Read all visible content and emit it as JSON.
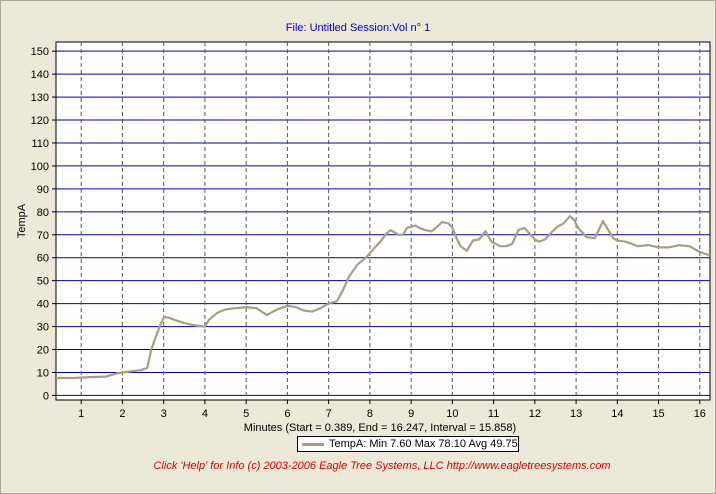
{
  "header": {
    "title": "File: Untitled   Session:Vol n° 1"
  },
  "footer": {
    "text": "Click 'Help' for Info  (c) 2003-2006 Eagle Tree Systems, LLC     http://www.eagletreesystems.com"
  },
  "legend": {
    "text": "TempA:  Min 7.60   Max 78.10   Avg 49.75"
  },
  "colors": {
    "series": "#a89f82",
    "grid_h": "#0000aa",
    "grid_v": "#555555",
    "title": "#0000cc",
    "footer": "#dd0000"
  },
  "chart_data": {
    "type": "line",
    "title": "File: Untitled   Session:Vol n° 1",
    "xlabel": "Minutes (Start = 0.389,  End = 16.247,  Interval =  15.858)",
    "ylabel": "TempA",
    "xlim": [
      0.389,
      16.247
    ],
    "ylim": [
      -2,
      154
    ],
    "xticks": [
      1,
      2,
      3,
      4,
      5,
      6,
      7,
      8,
      9,
      10,
      11,
      12,
      13,
      14,
      15,
      16
    ],
    "yticks": [
      0,
      10,
      20,
      30,
      40,
      50,
      60,
      70,
      80,
      90,
      100,
      110,
      120,
      130,
      140,
      150
    ],
    "grid": true,
    "legend_position": "bottom",
    "series": [
      {
        "name": "TempA",
        "x": [
          0.39,
          0.8,
          1.2,
          1.6,
          1.85,
          2.0,
          2.2,
          2.45,
          2.6,
          2.7,
          2.8,
          2.9,
          3.0,
          3.1,
          3.25,
          3.5,
          3.75,
          4.0,
          4.1,
          4.3,
          4.5,
          4.75,
          5.0,
          5.25,
          5.5,
          5.75,
          6.0,
          6.2,
          6.4,
          6.6,
          6.8,
          7.0,
          7.2,
          7.35,
          7.5,
          7.7,
          7.9,
          8.1,
          8.25,
          8.4,
          8.5,
          8.6,
          8.7,
          8.8,
          8.9,
          9.0,
          9.1,
          9.2,
          9.35,
          9.5,
          9.6,
          9.75,
          9.9,
          10.0,
          10.1,
          10.2,
          10.35,
          10.5,
          10.65,
          10.8,
          10.95,
          11.05,
          11.15,
          11.3,
          11.45,
          11.6,
          11.75,
          11.9,
          12.0,
          12.1,
          12.25,
          12.4,
          12.55,
          12.7,
          12.85,
          12.95,
          13.05,
          13.25,
          13.45,
          13.55,
          13.65,
          13.75,
          13.9,
          14.0,
          14.2,
          14.5,
          14.75,
          15.0,
          15.25,
          15.5,
          15.75,
          16.0,
          16.247
        ],
        "values": [
          7.6,
          7.6,
          8.0,
          8.2,
          9.5,
          10.0,
          10.5,
          11.0,
          12.0,
          20.0,
          25.0,
          30.0,
          34.0,
          34.0,
          33.0,
          31.5,
          30.5,
          30.0,
          33.0,
          36.0,
          37.5,
          38.0,
          38.5,
          38.0,
          35.0,
          37.5,
          39.0,
          38.5,
          37.0,
          36.5,
          38.0,
          40.0,
          41.0,
          46.0,
          52.0,
          57.0,
          60.0,
          64.0,
          67.0,
          70.5,
          72.0,
          71.0,
          70.0,
          70.0,
          73.0,
          73.5,
          74.0,
          73.0,
          72.0,
          71.5,
          73.0,
          75.5,
          75.0,
          73.0,
          68.5,
          65.0,
          63.0,
          67.5,
          68.0,
          71.5,
          67.0,
          66.0,
          65.0,
          65.0,
          66.0,
          72.0,
          73.0,
          70.0,
          68.0,
          67.0,
          68.0,
          71.0,
          73.5,
          75.0,
          78.1,
          76.5,
          73.0,
          69.0,
          68.5,
          72.0,
          76.0,
          73.0,
          68.5,
          67.5,
          67.0,
          65.0,
          65.5,
          64.5,
          64.5,
          65.5,
          65.0,
          62.5,
          61.0
        ]
      }
    ]
  }
}
